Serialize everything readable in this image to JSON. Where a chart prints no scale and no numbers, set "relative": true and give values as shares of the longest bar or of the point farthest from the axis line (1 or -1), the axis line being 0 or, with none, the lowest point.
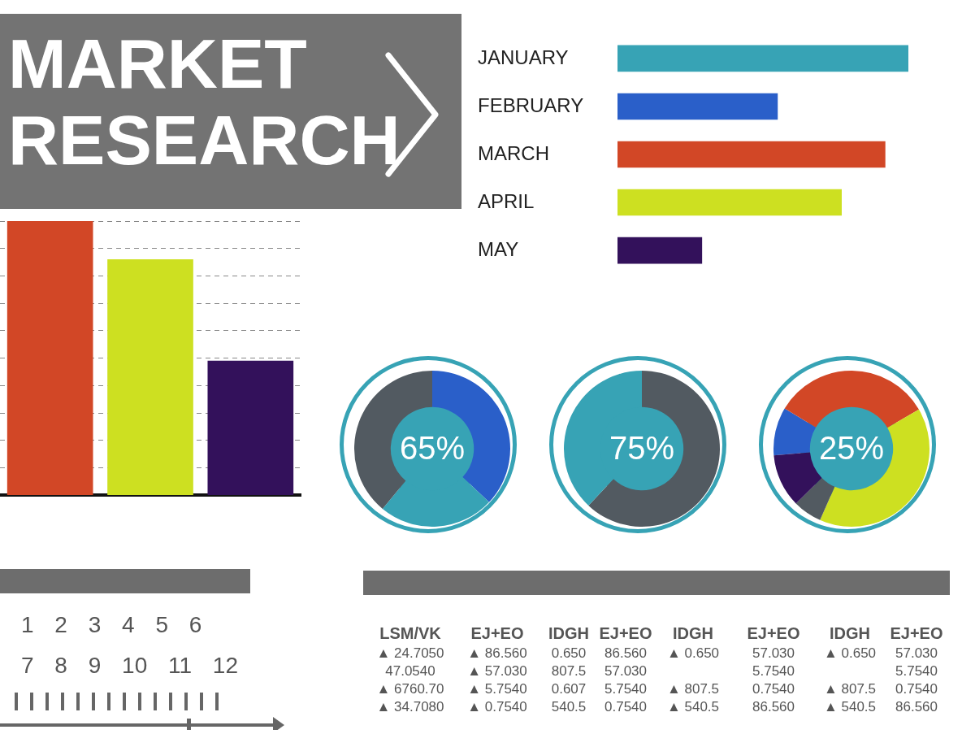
{
  "chart_data": [
    {
      "type": "bar",
      "title": "MARKET RESEARCH",
      "categories": [
        null,
        null,
        null
      ],
      "values": [
        1,
        0.86,
        0.49
      ],
      "colors": [
        "#d24726",
        "#cde021",
        "#33115b"
      ],
      "relative": true,
      "grid": "y"
    },
    {
      "type": "bar",
      "orientation": "horizontal",
      "categories": [
        "JANUARY",
        "FEBRUARY",
        "MARCH",
        "APRIL",
        "MAY"
      ],
      "values": [
        1,
        0.55,
        0.92,
        0.77,
        0.29
      ],
      "colors": [
        "#37a3b5",
        "#2a5fc9",
        "#d24726",
        "#cde021",
        "#33115b"
      ],
      "relative": true
    },
    {
      "type": "donut",
      "categories": [
        null,
        null,
        null
      ],
      "values": [
        37,
        24,
        39
      ],
      "colors": [
        "#2a5fc9",
        "#37a3b5",
        "#525a61"
      ],
      "annotations": [
        "65%"
      ]
    },
    {
      "type": "donut",
      "categories": [
        null,
        null
      ],
      "values": [
        62,
        38
      ],
      "colors": [
        "#525a61",
        "#37a3b5"
      ],
      "annotations": [
        "75%"
      ]
    },
    {
      "type": "donut",
      "categories": [
        null,
        null,
        null,
        null,
        null
      ],
      "values": [
        10,
        33,
        40,
        6,
        11
      ],
      "colors": [
        "#2a5fc9",
        "#d24726",
        "#cde021",
        "#525a61",
        "#33115b"
      ],
      "annotations": [
        "25%"
      ]
    },
    {
      "type": "other",
      "annotations": [
        "1 2 3 4 5 6",
        "7 8 9 10 11 12"
      ]
    },
    {
      "type": "other",
      "categories": [
        "LSM/VK",
        "EJ+EO",
        "IDGH",
        "EJ+EO",
        "IDGH",
        "EJ+EO",
        "IDGH",
        "EJ+EO"
      ],
      "annotations": [
        "▲ 24.7050",
        "47.0540",
        "▲ 6760.70",
        "▲ 34.7080",
        "▲ 86.560",
        "▲ 57.030",
        "▲ 5.7540",
        "▲ 0.7540",
        "0.650",
        "807.5",
        "0.607",
        "540.5",
        "86.560",
        "57.030",
        "5.7540",
        "0.7540",
        "▲ 0.650",
        null,
        "▲ 807.5",
        "▲ 540.5",
        "57.030",
        "5.7540",
        "0.7540",
        "86.560",
        "▲ 0.650",
        null,
        "▲ 807.5",
        "▲ 540.5",
        "57.030",
        "5.7540",
        "0.7540",
        "86.560"
      ]
    }
  ]
}
